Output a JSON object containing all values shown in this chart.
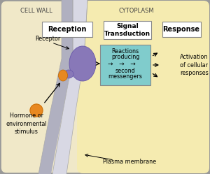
{
  "fig_width": 3.0,
  "fig_height": 2.49,
  "dpi": 100,
  "bg_outer": "#f0e8c8",
  "bg_cytoplasm": "#f5ebb0",
  "cell_wall_color": "#c0bece",
  "cytoplasm_label": "CYTOPLASM",
  "cell_wall_label": "CELL WALL",
  "box_reception": "Reception",
  "box_signal": "Signal\nTransduction",
  "box_response": "Response",
  "activation_text": "Activation\nof cellular\nresponses",
  "receptor_label": "Receptor",
  "hormone_label": "Hormone or\nenvironmental\nstimulus",
  "plasma_membrane_label": "Plasma membrane",
  "teal_color": "#80cccc",
  "white_box_color": "#ffffff",
  "purple_color": "#8878b8",
  "orange_color": "#e88820",
  "border_color": "#999999",
  "text_color": "#444444",
  "membrane_inner_color": "#d8d8e4",
  "membrane_outer_color": "#b0b0c0",
  "rounded_corner_r": 8
}
